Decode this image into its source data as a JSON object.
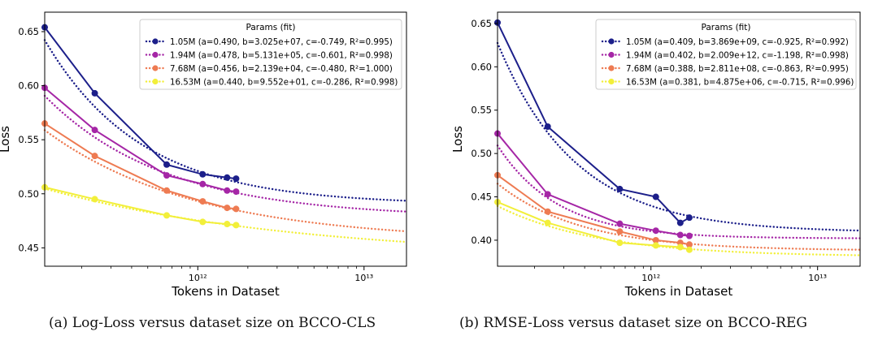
{
  "colors": {
    "1.05M": "#1c1f8a",
    "1.94M": "#a526a6",
    "7.68M": "#ee7b52",
    "16.53M": "#f2ef3a",
    "axis": "#000000",
    "legend_border": "#cccccc"
  },
  "chart_data": [
    {
      "type": "line",
      "panel": "a",
      "caption": "(a) Log-Loss versus dataset size on BCCO-CLS",
      "xlabel": "Tokens in Dataset",
      "ylabel": "Loss",
      "xscale": "log",
      "xlim": [
        120000000000.0,
        18000000000000.0
      ],
      "ylim": [
        0.433,
        0.668
      ],
      "xticks": [
        {
          "value": 1000000000000.0,
          "label": "10¹²"
        },
        {
          "value": 10000000000000.0,
          "label": "10¹³"
        }
      ],
      "yticks": [
        0.45,
        0.5,
        0.55,
        0.6,
        0.65
      ],
      "ytick_labels": [
        "0.45",
        "0.50",
        "0.55",
        "0.60",
        "0.65"
      ],
      "legend_title": "Params (fit)",
      "legend_position": "top-right",
      "series": [
        {
          "name": "1.05M",
          "label": "1.05M  (a=0.490, b=3.025e+07, c=-0.749, R²=0.995)",
          "x": [
            120000000000.0,
            240000000000.0,
            650000000000.0,
            1070000000000.0,
            1500000000000.0,
            1700000000000.0
          ],
          "y": [
            0.654,
            0.593,
            0.527,
            0.518,
            0.515,
            0.514
          ],
          "fit": {
            "a": 0.49,
            "b": 30250000.0,
            "c": -0.749
          }
        },
        {
          "name": "1.94M",
          "label": "1.94M  (a=0.478, b=5.131e+05, c=-0.601, R²=0.998)",
          "x": [
            120000000000.0,
            240000000000.0,
            650000000000.0,
            1070000000000.0,
            1500000000000.0,
            1700000000000.0
          ],
          "y": [
            0.598,
            0.559,
            0.517,
            0.509,
            0.503,
            0.502
          ],
          "fit": {
            "a": 0.478,
            "b": 513100.0,
            "c": -0.601
          }
        },
        {
          "name": "7.68M",
          "label": "7.68M  (a=0.456, b=2.139e+04, c=-0.480, R²=1.000)",
          "x": [
            120000000000.0,
            240000000000.0,
            650000000000.0,
            1070000000000.0,
            1500000000000.0,
            1700000000000.0
          ],
          "y": [
            0.565,
            0.535,
            0.503,
            0.493,
            0.487,
            0.486
          ],
          "fit": {
            "a": 0.456,
            "b": 21390.0,
            "c": -0.48
          }
        },
        {
          "name": "16.53M",
          "label": "16.53M  (a=0.440, b=9.552e+01, c=-0.286, R²=0.998)",
          "x": [
            120000000000.0,
            240000000000.0,
            650000000000.0,
            1070000000000.0,
            1500000000000.0,
            1700000000000.0
          ],
          "y": [
            0.506,
            0.495,
            0.48,
            0.474,
            0.472,
            0.471
          ],
          "fit": {
            "a": 0.44,
            "b": 95.52,
            "c": -0.286
          }
        }
      ]
    },
    {
      "type": "line",
      "panel": "b",
      "caption": "(b) RMSE-Loss versus dataset size on BCCO-REG",
      "xlabel": "Tokens in Dataset",
      "ylabel": "Loss",
      "xscale": "log",
      "xlim": [
        120000000000.0,
        18000000000000.0
      ],
      "ylim": [
        0.37,
        0.663
      ],
      "xticks": [
        {
          "value": 1000000000000.0,
          "label": "10¹²"
        },
        {
          "value": 10000000000000.0,
          "label": "10¹³"
        }
      ],
      "yticks": [
        0.4,
        0.45,
        0.5,
        0.55,
        0.6,
        0.65
      ],
      "ytick_labels": [
        "0.40",
        "0.45",
        "0.50",
        "0.55",
        "0.60",
        "0.65"
      ],
      "legend_title": "Params (fit)",
      "legend_position": "top-right",
      "series": [
        {
          "name": "1.05M",
          "label": "1.05M  (a=0.409, b=3.869e+09, c=-0.925, R²=0.992)",
          "x": [
            120000000000.0,
            240000000000.0,
            650000000000.0,
            1070000000000.0,
            1500000000000.0,
            1700000000000.0
          ],
          "y": [
            0.651,
            0.531,
            0.459,
            0.45,
            0.42,
            0.426
          ],
          "fit": {
            "a": 0.409,
            "b": 3869000000.0,
            "c": -0.925
          }
        },
        {
          "name": "1.94M",
          "label": "1.94M  (a=0.402, b=2.009e+12, c=-1.198, R²=0.998)",
          "x": [
            120000000000.0,
            240000000000.0,
            650000000000.0,
            1070000000000.0,
            1500000000000.0,
            1700000000000.0
          ],
          "y": [
            0.523,
            0.453,
            0.419,
            0.411,
            0.406,
            0.405
          ],
          "fit": {
            "a": 0.402,
            "b": 2009000000000.0,
            "c": -1.198
          }
        },
        {
          "name": "7.68M",
          "label": "7.68M  (a=0.388, b=2.811e+08, c=-0.863, R²=0.995)",
          "x": [
            120000000000.0,
            240000000000.0,
            650000000000.0,
            1070000000000.0,
            1500000000000.0,
            1700000000000.0
          ],
          "y": [
            0.475,
            0.433,
            0.41,
            0.4,
            0.397,
            0.395
          ],
          "fit": {
            "a": 0.388,
            "b": 281100000.0,
            "c": -0.863
          }
        },
        {
          "name": "16.53M",
          "label": "16.53M  (a=0.381, b=4.875e+06, c=-0.715, R²=0.996)",
          "x": [
            120000000000.0,
            240000000000.0,
            650000000000.0,
            1070000000000.0,
            1500000000000.0,
            1700000000000.0
          ],
          "y": [
            0.444,
            0.42,
            0.397,
            0.394,
            0.392,
            0.389
          ],
          "fit": {
            "a": 0.381,
            "b": 4875000.0,
            "c": -0.715
          }
        }
      ]
    }
  ]
}
